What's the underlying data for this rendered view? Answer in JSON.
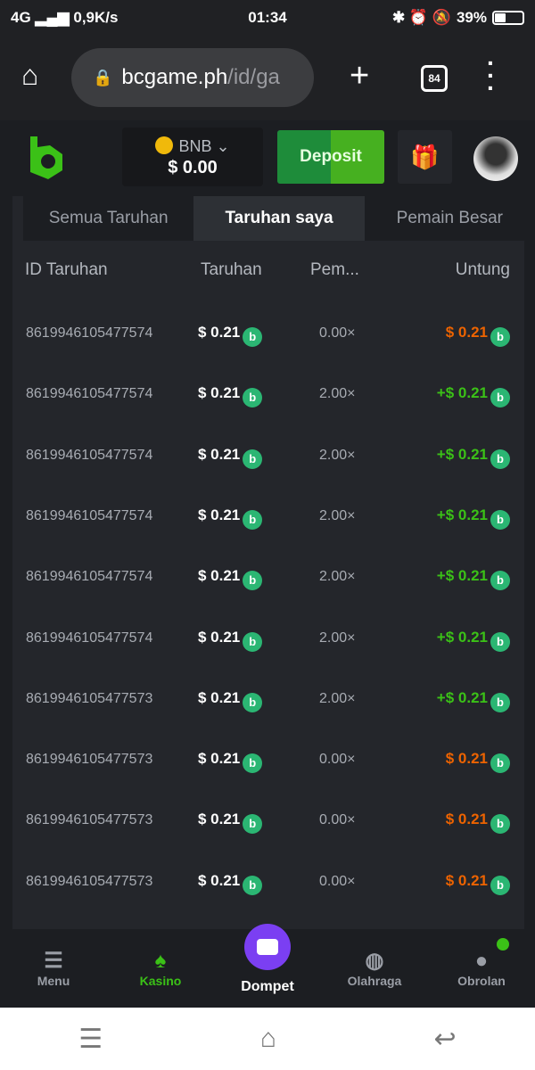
{
  "status": {
    "network": "4G",
    "speed": "0,9K/s",
    "time": "01:34",
    "battery": "39%"
  },
  "browser": {
    "url_host": "bcgame.ph",
    "url_path": "/id/ga",
    "tab_count": "84"
  },
  "header": {
    "currency": "BNB",
    "balance": "$ 0.00",
    "deposit": "Deposit"
  },
  "tabs": [
    {
      "label": "Semua Taruhan"
    },
    {
      "label": "Taruhan saya"
    },
    {
      "label": "Pemain Besar"
    }
  ],
  "columns": {
    "id": "ID Taruhan",
    "bet": "Taruhan",
    "mult": "Pem...",
    "profit": "Untung"
  },
  "rows": [
    {
      "id": "8619946105477574",
      "bet": "$ 0.21",
      "mult": "0.00×",
      "profit": "$ 0.21",
      "win": false
    },
    {
      "id": "8619946105477574",
      "bet": "$ 0.21",
      "mult": "2.00×",
      "profit": "+$ 0.21",
      "win": true
    },
    {
      "id": "8619946105477574",
      "bet": "$ 0.21",
      "mult": "2.00×",
      "profit": "+$ 0.21",
      "win": true
    },
    {
      "id": "8619946105477574",
      "bet": "$ 0.21",
      "mult": "2.00×",
      "profit": "+$ 0.21",
      "win": true
    },
    {
      "id": "8619946105477574",
      "bet": "$ 0.21",
      "mult": "2.00×",
      "profit": "+$ 0.21",
      "win": true
    },
    {
      "id": "8619946105477574",
      "bet": "$ 0.21",
      "mult": "2.00×",
      "profit": "+$ 0.21",
      "win": true
    },
    {
      "id": "8619946105477573",
      "bet": "$ 0.21",
      "mult": "2.00×",
      "profit": "+$ 0.21",
      "win": true
    },
    {
      "id": "8619946105477573",
      "bet": "$ 0.21",
      "mult": "0.00×",
      "profit": "$ 0.21",
      "win": false
    },
    {
      "id": "8619946105477573",
      "bet": "$ 0.21",
      "mult": "0.00×",
      "profit": "$ 0.21",
      "win": false
    },
    {
      "id": "8619946105477573",
      "bet": "$ 0.21",
      "mult": "0.00×",
      "profit": "$ 0.21",
      "win": false
    }
  ],
  "nav": [
    {
      "label": "Menu",
      "icon": "menu-icon"
    },
    {
      "label": "Kasino",
      "icon": "casino-icon"
    },
    {
      "label": "Dompet",
      "icon": "wallet-icon"
    },
    {
      "label": "Olahraga",
      "icon": "sports-icon"
    },
    {
      "label": "Obrolan",
      "icon": "chat-icon"
    }
  ],
  "colors": {
    "win": "#3bc117",
    "loss": "#ed6300",
    "accent": "#7b3ff2"
  }
}
